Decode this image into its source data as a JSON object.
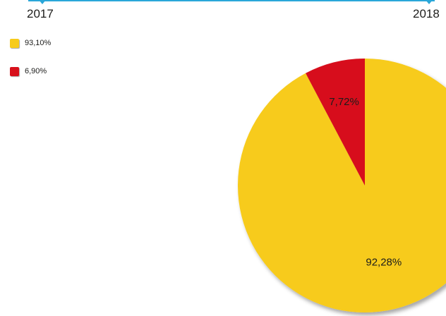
{
  "header": {
    "year_left": "2017",
    "year_right": "2018"
  },
  "legend": [
    {
      "label": "93,10%",
      "color": "#f7cb1b"
    },
    {
      "label": "6,90%",
      "color": "#d7111b"
    }
  ],
  "chart_data": [
    {
      "type": "pie",
      "title": "2017",
      "slices": [
        {
          "label": "93,10%",
          "value": 93.1,
          "color": "#f7cb1b"
        },
        {
          "label": "6,90%",
          "value": 6.9,
          "color": "#d7111b"
        }
      ]
    },
    {
      "type": "pie",
      "title": "2018",
      "slices": [
        {
          "label": "92,28%",
          "value": 92.28,
          "color": "#f7cb1b"
        },
        {
          "label": "7,72%",
          "value": 7.72,
          "color": "#d7111b"
        }
      ]
    }
  ]
}
